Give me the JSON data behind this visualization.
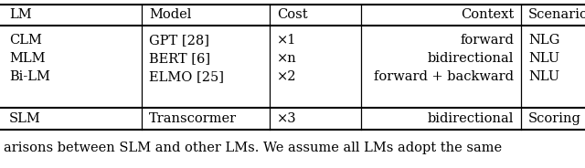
{
  "headers": [
    "LM",
    "Model",
    "Cost",
    "Context",
    "Scenario"
  ],
  "rows": [
    [
      "CLM",
      "GPT [28]",
      "×1",
      "forward",
      "NLG"
    ],
    [
      "MLM",
      "BERT [6]",
      "×n",
      "bidirectional",
      "NLU"
    ],
    [
      "Bi-LM",
      "ELMO [25]",
      "×2",
      "forward + backward",
      "NLU"
    ],
    [
      "SLM",
      "Transcormer",
      "×3",
      "bidirectional",
      "Scoring"
    ]
  ],
  "footer_text": "arisons between SLM and other LMs. We assume all LMs adopt the same",
  "background_color": "#ffffff",
  "font_size": 10.5
}
